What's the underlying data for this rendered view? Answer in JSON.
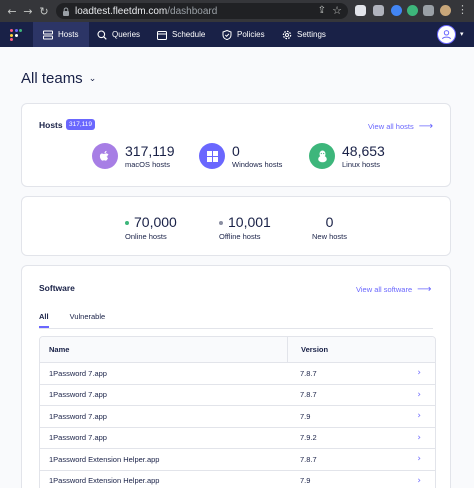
{
  "browser": {
    "url_host": "loadtest.fleetdm.com",
    "url_path": "/dashboard"
  },
  "nav": {
    "items": [
      {
        "label": "Hosts",
        "icon": "hosts-icon",
        "active": true
      },
      {
        "label": "Queries",
        "icon": "queries-icon"
      },
      {
        "label": "Schedule",
        "icon": "schedule-icon"
      },
      {
        "label": "Policies",
        "icon": "policies-icon"
      },
      {
        "label": "Settings",
        "icon": "settings-icon"
      }
    ]
  },
  "page": {
    "team_title": "All teams"
  },
  "hosts_card": {
    "title": "Hosts",
    "badge": "317,119",
    "view_all": "View all hosts",
    "platforms": [
      {
        "count": "317,119",
        "label": "macOS hosts",
        "icon": "apple-icon",
        "color": "#a77ee5"
      },
      {
        "count": "0",
        "label": "Windows hosts",
        "icon": "windows-icon",
        "color": "#6a67fe"
      },
      {
        "count": "48,653",
        "label": "Linux hosts",
        "icon": "linux-icon",
        "color": "#3db67b"
      }
    ]
  },
  "status_card": {
    "stats": [
      {
        "count": "70,000",
        "label": "Online hosts",
        "dot_color": "#3db67b"
      },
      {
        "count": "10,001",
        "label": "Offline hosts",
        "dot_color": "#8b8fa2"
      },
      {
        "count": "0",
        "label": "New hosts"
      }
    ]
  },
  "software_card": {
    "title": "Software",
    "view_all": "View all software",
    "tabs": [
      {
        "label": "All",
        "active": true
      },
      {
        "label": "Vulnerable"
      }
    ],
    "columns": [
      "Name",
      "Version"
    ],
    "rows": [
      {
        "name": "1Password 7.app",
        "version": "7.8.7"
      },
      {
        "name": "1Password 7.app",
        "version": "7.8.7"
      },
      {
        "name": "1Password 7.app",
        "version": "7.9"
      },
      {
        "name": "1Password 7.app",
        "version": "7.9.2"
      },
      {
        "name": "1Password Extension Helper.app",
        "version": "7.8.7"
      },
      {
        "name": "1Password Extension Helper.app",
        "version": "7.9"
      }
    ]
  },
  "colors": {
    "brand": "#6a67fe",
    "nav_bg": "#192147",
    "text": "#192147"
  }
}
